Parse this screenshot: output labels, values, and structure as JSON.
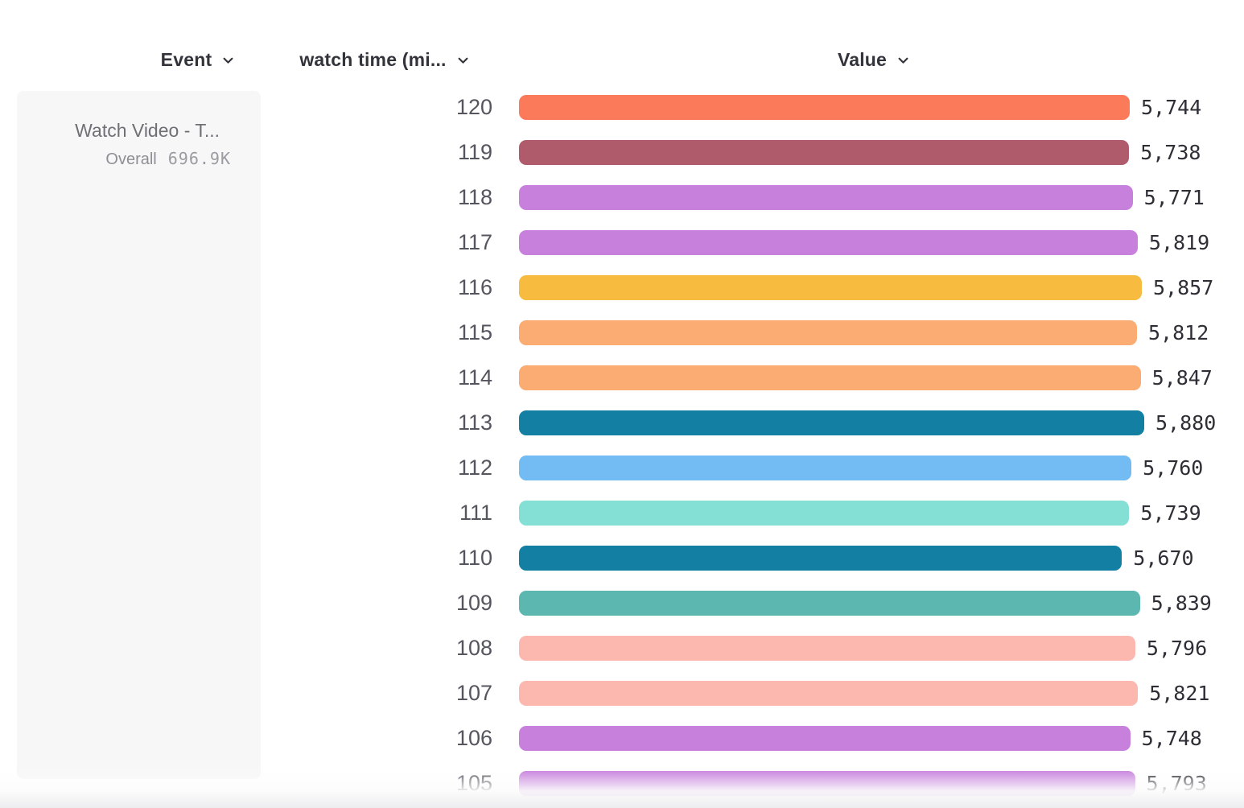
{
  "header": {
    "event_label": "Event",
    "watch_time_label": "watch time (mi...",
    "value_label": "Value"
  },
  "event_panel": {
    "title": "Watch Video - T...",
    "metric_label": "Overall",
    "metric_value": "696.9K"
  },
  "colors": {
    "header_text": "#33333b",
    "row_label_text": "#55555e",
    "value_text": "#2e2e36",
    "panel_bg": "#f7f7f8"
  },
  "chart_data": {
    "type": "bar",
    "orientation": "horizontal",
    "title": "",
    "xlabel": "Value",
    "ylabel": "watch time (mi...)",
    "xlim": [
      0,
      5880
    ],
    "grid": false,
    "legend": false,
    "categories": [
      120,
      119,
      118,
      117,
      116,
      115,
      114,
      113,
      112,
      111,
      110,
      109,
      108,
      107,
      106,
      105
    ],
    "values": [
      5744,
      5738,
      5771,
      5819,
      5857,
      5812,
      5847,
      5880,
      5760,
      5739,
      5670,
      5839,
      5796,
      5821,
      5748,
      5793
    ],
    "value_labels": [
      "5,744",
      "5,738",
      "5,771",
      "5,819",
      "5,857",
      "5,812",
      "5,847",
      "5,880",
      "5,760",
      "5,739",
      "5,670",
      "5,839",
      "5,796",
      "5,821",
      "5,748",
      "5,793"
    ],
    "bar_colors": [
      "#FB7A59",
      "#AF5B6C",
      "#C781DD",
      "#C781DD",
      "#F6BB3F",
      "#FAAC72",
      "#FAAC72",
      "#127FA3",
      "#73BCF3",
      "#84E0D4",
      "#127FA3",
      "#5BB7B0",
      "#FCB8AE",
      "#FCB8AE",
      "#C781DD",
      "#C781DD"
    ]
  }
}
